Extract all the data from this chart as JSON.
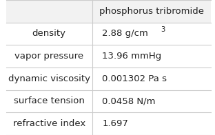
{
  "title": "phosphorus tribromide",
  "rows": [
    [
      "density",
      "2.88 g/cm³"
    ],
    [
      "vapor pressure",
      "13.96 mmHg"
    ],
    [
      "dynamic viscosity",
      "0.001302 Pa s"
    ],
    [
      "surface tension",
      "0.0458 N/m"
    ],
    [
      "refractive index",
      "1.697"
    ]
  ],
  "col_split": 0.42,
  "header_bg": "#f2f2f2",
  "cell_bg": "#ffffff",
  "line_color": "#cccccc",
  "text_color": "#222222",
  "font_size": 9.5,
  "header_font_size": 9.5
}
